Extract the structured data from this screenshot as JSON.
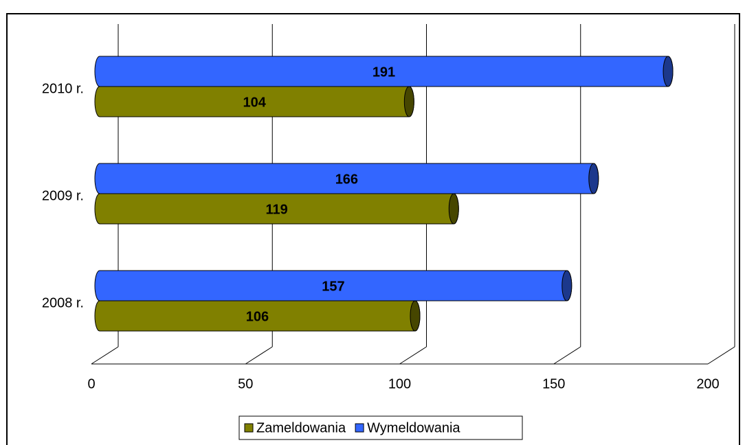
{
  "chart_data": {
    "type": "bar",
    "orientation": "horizontal",
    "categories": [
      "2008 r.",
      "2009 r.",
      "2010 r."
    ],
    "series": [
      {
        "name": "Zameldowania",
        "color": "#808000",
        "values": [
          106,
          119,
          104
        ]
      },
      {
        "name": "Wymeldowania",
        "color": "#3366ff",
        "values": [
          157,
          166,
          191
        ]
      }
    ],
    "xlim": [
      0,
      200
    ],
    "xticks": [
      0,
      50,
      100,
      150,
      200
    ],
    "grid": true,
    "legend": "bottom"
  }
}
